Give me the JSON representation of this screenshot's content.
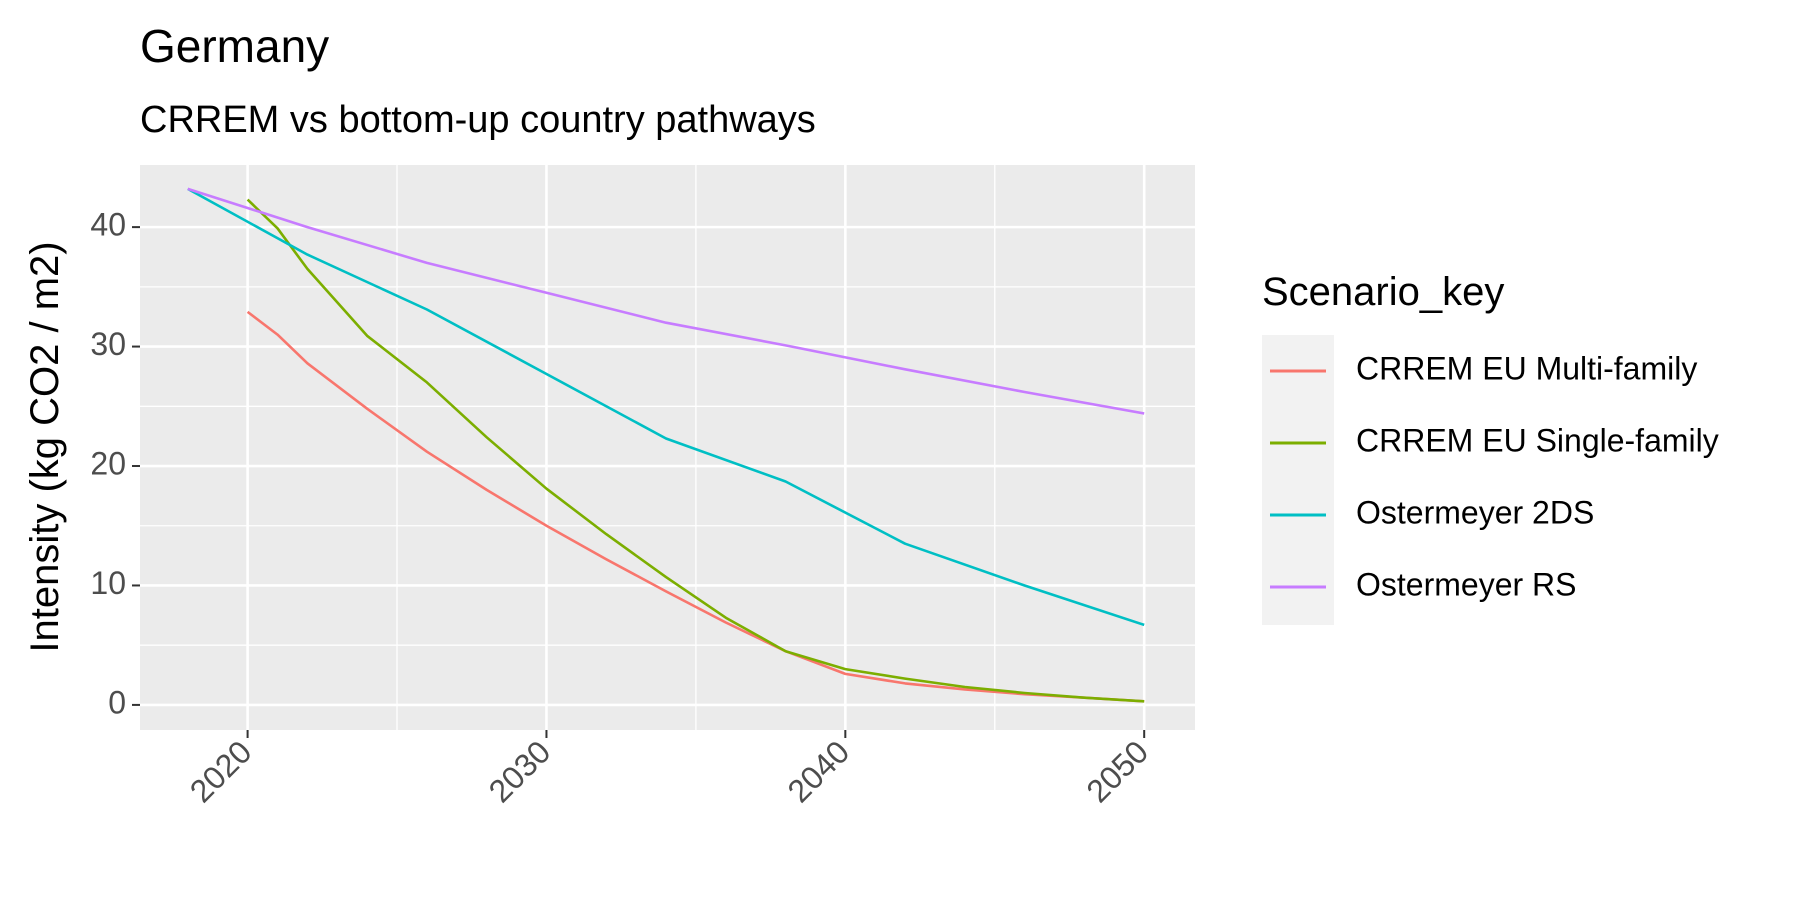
{
  "chart_data": {
    "type": "line",
    "title": "Germany",
    "subtitle": "CRREM vs bottom-up country pathways",
    "xlabel": "",
    "ylabel": "Intensity (kg CO2 / m2)",
    "xlim": [
      2016.4,
      2051.7
    ],
    "ylim": [
      -2.1,
      45.2
    ],
    "x_ticks": [
      2020,
      2030,
      2040,
      2050
    ],
    "y_ticks": [
      0,
      10,
      20,
      30,
      40
    ],
    "grid": true,
    "legend": {
      "title": "Scenario_key",
      "placement": "right"
    },
    "series": [
      {
        "name": "CRREM EU Multi-family",
        "color": "#F8766D",
        "x": [
          2020,
          2021,
          2022,
          2024,
          2026,
          2028,
          2030,
          2032,
          2034,
          2036,
          2038,
          2040,
          2042,
          2044,
          2046,
          2048,
          2050
        ],
        "y": [
          32.9,
          31.0,
          28.6,
          24.8,
          21.2,
          18.0,
          15.0,
          12.2,
          9.5,
          6.9,
          4.5,
          2.6,
          1.8,
          1.3,
          0.9,
          0.6,
          0.3
        ]
      },
      {
        "name": "CRREM EU Single-family",
        "color": "#7CAE00",
        "x": [
          2020,
          2021,
          2022,
          2024,
          2026,
          2028,
          2030,
          2032,
          2034,
          2036,
          2038,
          2040,
          2042,
          2044,
          2046,
          2048,
          2050
        ],
        "y": [
          42.3,
          39.9,
          36.5,
          30.9,
          27.0,
          22.4,
          18.1,
          14.3,
          10.7,
          7.3,
          4.5,
          3.0,
          2.2,
          1.5,
          1.0,
          0.6,
          0.3
        ]
      },
      {
        "name": "Ostermeyer 2DS",
        "color": "#00BFC4",
        "x": [
          2018,
          2022,
          2026,
          2030,
          2034,
          2038,
          2042,
          2046,
          2050
        ],
        "y": [
          43.2,
          37.7,
          33.1,
          27.7,
          22.3,
          18.7,
          13.5,
          10.0,
          6.7
        ]
      },
      {
        "name": "Ostermeyer RS",
        "color": "#C77CFF",
        "x": [
          2018,
          2022,
          2026,
          2030,
          2034,
          2038,
          2042,
          2046,
          2050
        ],
        "y": [
          43.2,
          40.0,
          37.0,
          34.5,
          32.0,
          30.1,
          28.1,
          26.2,
          24.4
        ]
      }
    ]
  }
}
